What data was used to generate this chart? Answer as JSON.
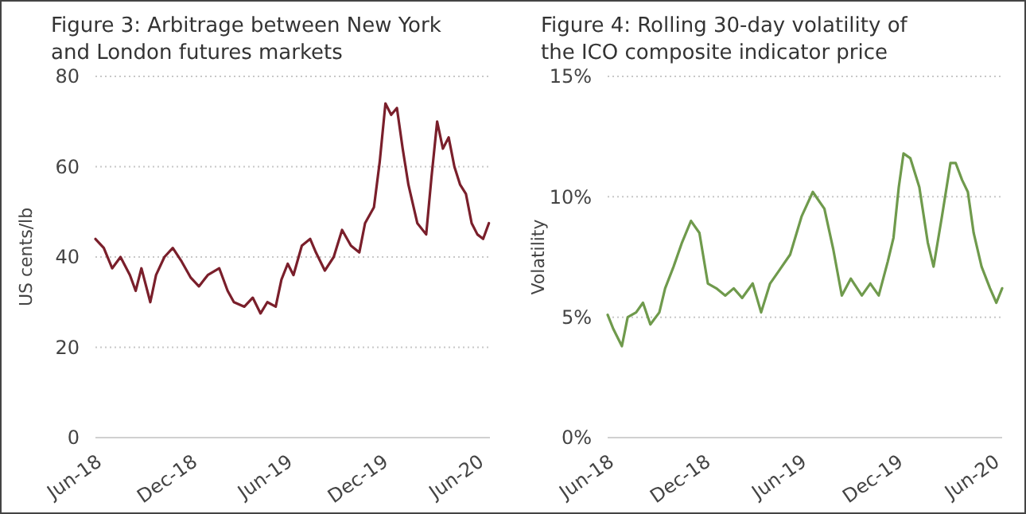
{
  "chart_data": [
    {
      "type": "line",
      "title": "Figure 3:  Arbitrage between New York and London futures markets",
      "ylabel": "US cents/lb",
      "grid": "y",
      "ylim": [
        0,
        80
      ],
      "yticks": [
        0,
        20,
        40,
        60,
        80
      ],
      "xlim": [
        "2018-06-01",
        "2020-06-25"
      ],
      "xticks": [
        {
          "value": "2018-06-01",
          "label": "Jun-18"
        },
        {
          "value": "2018-12-01",
          "label": "Dec-18"
        },
        {
          "value": "2019-06-01",
          "label": "Jun-19"
        },
        {
          "value": "2019-12-01",
          "label": "Dec-19"
        },
        {
          "value": "2020-06-01",
          "label": "Jun-20"
        }
      ],
      "series": [
        {
          "color": "#7a1f2b",
          "x": [
            "2018-06-01",
            "2018-06-17",
            "2018-07-03",
            "2018-07-19",
            "2018-08-06",
            "2018-08-17",
            "2018-08-28",
            "2018-09-14",
            "2018-09-25",
            "2018-10-11",
            "2018-10-27",
            "2018-11-13",
            "2018-11-30",
            "2018-12-16",
            "2019-01-02",
            "2019-01-24",
            "2019-02-09",
            "2019-02-21",
            "2019-03-13",
            "2019-03-29",
            "2019-04-13",
            "2019-04-26",
            "2019-05-12",
            "2019-05-23",
            "2019-06-04",
            "2019-06-15",
            "2019-07-01",
            "2019-07-17",
            "2019-07-28",
            "2019-08-14",
            "2019-08-31",
            "2019-09-16",
            "2019-10-03",
            "2019-10-19",
            "2019-10-30",
            "2019-11-16",
            "2019-11-27",
            "2019-12-08",
            "2019-12-19",
            "2019-12-30",
            "2020-01-10",
            "2020-01-21",
            "2020-02-07",
            "2020-02-24",
            "2020-03-05",
            "2020-03-16",
            "2020-03-27",
            "2020-04-07",
            "2020-04-18",
            "2020-04-29",
            "2020-05-10",
            "2020-05-21",
            "2020-06-01",
            "2020-06-12",
            "2020-06-23"
          ],
          "values": [
            44,
            42,
            37.5,
            40,
            36,
            32.5,
            37.5,
            30,
            36,
            40,
            42,
            39,
            35.5,
            33.5,
            36,
            37.5,
            32.5,
            30,
            29,
            31,
            27.5,
            30,
            29,
            35,
            38.5,
            36,
            42.5,
            44,
            41,
            37,
            40,
            46,
            42.5,
            41,
            47.5,
            51,
            61,
            74,
            71.5,
            73,
            64,
            56,
            47.5,
            45,
            57.5,
            70,
            64,
            66.5,
            60,
            56,
            54,
            47.5,
            45,
            44,
            47.5
          ]
        }
      ]
    },
    {
      "type": "line",
      "title": "Figure 4:  Rolling 30-day volatility of the ICO  composite indicator price",
      "ylabel": "Volatility",
      "grid": "y",
      "ylim": [
        0,
        15
      ],
      "yticks": [
        {
          "value": 0,
          "label": "0%"
        },
        {
          "value": 5,
          "label": "5%"
        },
        {
          "value": 10,
          "label": "10%"
        },
        {
          "value": 15,
          "label": "15%"
        }
      ],
      "xlim": [
        "2018-06-01",
        "2020-06-18"
      ],
      "xticks": [
        {
          "value": "2018-06-01",
          "label": "Jun-18"
        },
        {
          "value": "2018-12-01",
          "label": "Dec-18"
        },
        {
          "value": "2019-06-01",
          "label": "Jun-19"
        },
        {
          "value": "2019-12-01",
          "label": "Dec-19"
        },
        {
          "value": "2020-06-01",
          "label": "Jun-20"
        }
      ],
      "series": [
        {
          "color": "#6f9a4c",
          "x": [
            "2018-06-01",
            "2018-06-12",
            "2018-06-28",
            "2018-07-09",
            "2018-07-25",
            "2018-08-07",
            "2018-08-21",
            "2018-09-07",
            "2018-09-18",
            "2018-10-04",
            "2018-10-20",
            "2018-11-06",
            "2018-11-22",
            "2018-12-08",
            "2018-12-24",
            "2019-01-10",
            "2019-01-26",
            "2019-02-11",
            "2019-03-03",
            "2019-03-19",
            "2019-04-05",
            "2019-04-21",
            "2019-05-13",
            "2019-06-04",
            "2019-06-25",
            "2019-07-17",
            "2019-08-03",
            "2019-08-19",
            "2019-09-05",
            "2019-09-26",
            "2019-10-12",
            "2019-10-28",
            "2019-11-14",
            "2019-11-25",
            "2019-12-05",
            "2019-12-14",
            "2019-12-27",
            "2020-01-13",
            "2020-01-29",
            "2020-02-09",
            "2020-02-25",
            "2020-03-12",
            "2020-03-22",
            "2020-04-03",
            "2020-04-14",
            "2020-04-25",
            "2020-05-10",
            "2020-05-26",
            "2020-06-07",
            "2020-06-18"
          ],
          "values": [
            5.1,
            4.5,
            3.8,
            5,
            5.2,
            5.6,
            4.7,
            5.2,
            6.2,
            7.1,
            8.1,
            9,
            8.5,
            6.4,
            6.2,
            5.9,
            6.2,
            5.8,
            6.4,
            5.2,
            6.4,
            6.9,
            7.6,
            9.2,
            10.2,
            9.5,
            7.8,
            5.9,
            6.6,
            5.9,
            6.4,
            5.9,
            7.3,
            8.3,
            10.4,
            11.8,
            11.6,
            10.4,
            8.1,
            7.1,
            9.2,
            11.4,
            11.4,
            10.7,
            10.2,
            8.5,
            7.1,
            6.2,
            5.6,
            6.2
          ]
        }
      ]
    }
  ]
}
